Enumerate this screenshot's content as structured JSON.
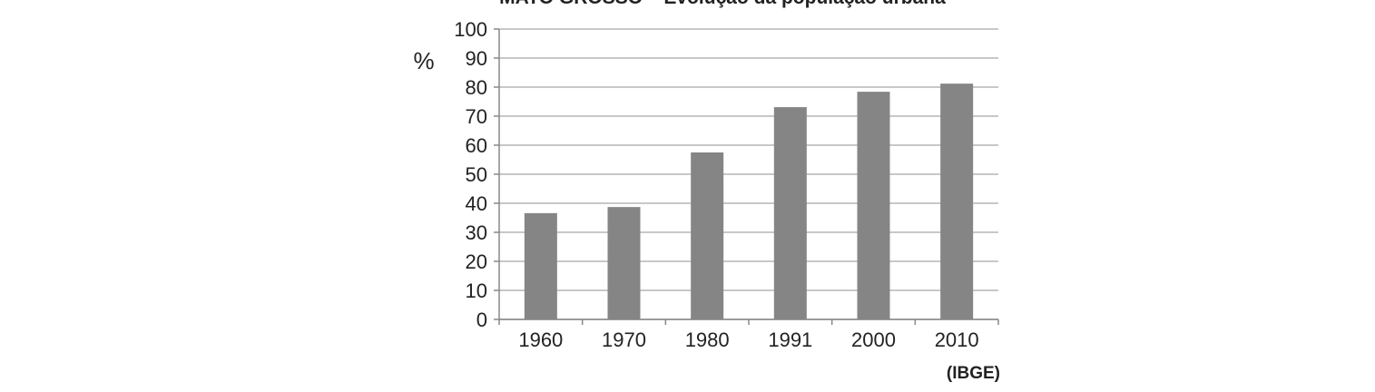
{
  "chart_data": {
    "type": "bar",
    "title": "MATO GROSSO – Evolução da população urbana",
    "y_label": "%",
    "source": "(IBGE)",
    "categories": [
      "1960",
      "1970",
      "1980",
      "1991",
      "2000",
      "2010"
    ],
    "values": [
      36.6,
      38.7,
      57.5,
      73.1,
      78.4,
      81.2
    ],
    "color": "#858585",
    "ylim": [
      0,
      100
    ],
    "yticks": [
      0,
      10,
      20,
      30,
      40,
      50,
      60,
      70,
      80,
      90,
      100
    ],
    "grid": true
  }
}
